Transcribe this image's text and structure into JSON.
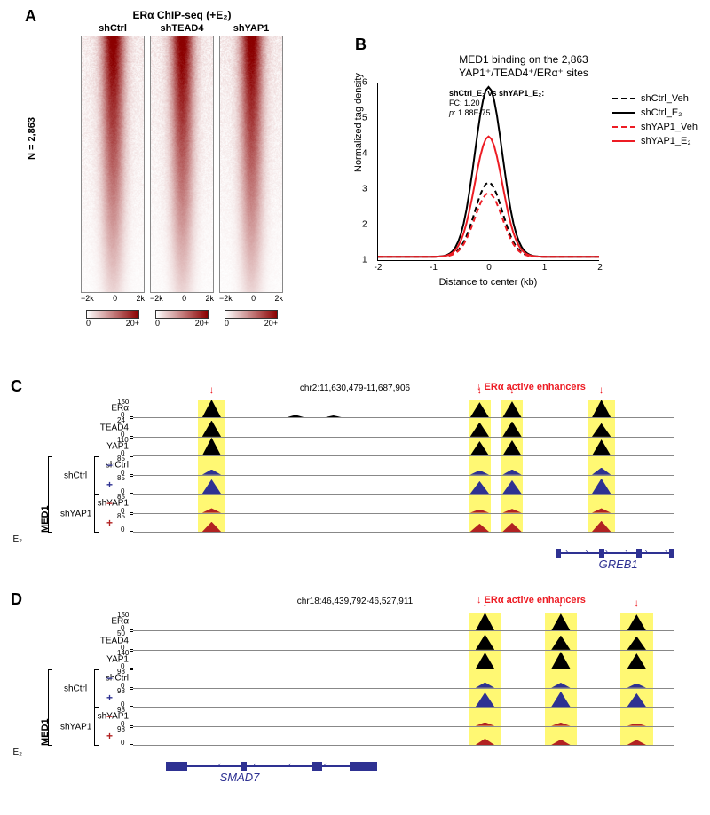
{
  "panelA": {
    "label": "A",
    "title": "ERα ChIP-seq (+E₂)",
    "n_label": "N = 2,863",
    "columns": [
      {
        "label": "shCtrl",
        "scale_min": 0,
        "scale_max": "20+"
      },
      {
        "label": "shTEAD4",
        "scale_min": 0,
        "scale_max": "20+"
      },
      {
        "label": "shYAP1",
        "scale_min": 0,
        "scale_max": "20+"
      }
    ],
    "xaxis": [
      "−2k",
      "0",
      "2k"
    ],
    "heatmap_color_low": "#ffffff",
    "heatmap_color_high": "#8b0000"
  },
  "panelB": {
    "label": "B",
    "title_line1": "MED1 binding on the 2,863",
    "title_line2": "YAP1⁺/TEAD4⁺/ERα⁺ sites",
    "ylabel": "Normalized tag density",
    "xlabel": "Distance to center (kb)",
    "xlim": [
      -2,
      2
    ],
    "ylim": [
      1,
      6
    ],
    "xticks": [
      -2,
      -1,
      0,
      1,
      2
    ],
    "yticks": [
      1,
      2,
      3,
      4,
      5,
      6
    ],
    "inset_line1": "shCtrl_E₂ vs shYAP1_E₂:",
    "inset_line2": "FC: 1.20",
    "inset_line3": "p: 1.88E-75",
    "series": [
      {
        "name": "shCtrl_Veh",
        "color": "#000000",
        "dash": "6,4",
        "peak": 3.2
      },
      {
        "name": "shCtrl_E₂",
        "color": "#000000",
        "dash": "",
        "peak": 5.9
      },
      {
        "name": "shYAP1_Veh",
        "color": "#ed1c24",
        "dash": "6,4",
        "peak": 2.9
      },
      {
        "name": "shYAP1_E₂",
        "color": "#ed1c24",
        "dash": "",
        "peak": 4.5
      }
    ]
  },
  "panelC": {
    "label": "C",
    "coord": "chr2:11,630,479-11,687,906",
    "enh_label": "ERα active enhancers",
    "enh_label_pos_pct": 70,
    "highlights_pct": [
      [
        12,
        17
      ],
      [
        62,
        66
      ],
      [
        68,
        72
      ],
      [
        84,
        89
      ]
    ],
    "arrows_pct": [
      14.5,
      64,
      70,
      86.5
    ],
    "rows": [
      {
        "label": "ERα",
        "scale": 150,
        "color": "#000000",
        "peaks_pct": [
          [
            14.5,
            1.0
          ],
          [
            30,
            0.15
          ],
          [
            37,
            0.12
          ],
          [
            64,
            0.85
          ],
          [
            70,
            0.9
          ],
          [
            86.5,
            1.0
          ]
        ]
      },
      {
        "label": "TEAD4",
        "scale": 24,
        "color": "#000000",
        "peaks_pct": [
          [
            14.5,
            0.9
          ],
          [
            64,
            0.8
          ],
          [
            70,
            0.85
          ],
          [
            86.5,
            0.75
          ]
        ]
      },
      {
        "label": "YAP1",
        "scale": 110,
        "color": "#000000",
        "peaks_pct": [
          [
            14.5,
            1.0
          ],
          [
            64,
            0.8
          ],
          [
            70,
            0.85
          ],
          [
            86.5,
            0.9
          ]
        ]
      },
      {
        "label": "shCtrl",
        "sign": "−",
        "scale": 85,
        "color": "#2e3192",
        "peaks_pct": [
          [
            14.5,
            0.3
          ],
          [
            64,
            0.25
          ],
          [
            70,
            0.3
          ],
          [
            86.5,
            0.4
          ]
        ]
      },
      {
        "label": "",
        "sign": "+",
        "scale": 85,
        "color": "#2e3192",
        "peaks_pct": [
          [
            14.5,
            0.8
          ],
          [
            64,
            0.7
          ],
          [
            70,
            0.75
          ],
          [
            86.5,
            0.85
          ]
        ]
      },
      {
        "label": "shYAP1",
        "sign": "−",
        "scale": 85,
        "color": "#b22222",
        "peaks_pct": [
          [
            14.5,
            0.25
          ],
          [
            64,
            0.2
          ],
          [
            70,
            0.22
          ],
          [
            86.5,
            0.25
          ]
        ]
      },
      {
        "label": "",
        "sign": "+",
        "scale": 85,
        "color": "#b22222",
        "peaks_pct": [
          [
            14.5,
            0.55
          ],
          [
            64,
            0.45
          ],
          [
            70,
            0.5
          ],
          [
            86.5,
            0.6
          ]
        ]
      }
    ],
    "e2_label": "E₂",
    "med1_label": "MED1",
    "gene": {
      "name": "GREB1",
      "start_pct": 78,
      "end_pct": 100,
      "exons_pct": [
        [
          78,
          79
        ],
        [
          86,
          87
        ],
        [
          93,
          94
        ],
        [
          99,
          100
        ]
      ],
      "name_pos_pct": 86
    }
  },
  "panelD": {
    "label": "D",
    "coord": "chr18:46,439,792-46,527,911",
    "enh_label": "ERα active enhancers",
    "enh_label_pos_pct": 70,
    "highlights_pct": [
      [
        62,
        68
      ],
      [
        76,
        82
      ],
      [
        90,
        96
      ]
    ],
    "arrows_pct": [
      65,
      79,
      93
    ],
    "rows": [
      {
        "label": "ERα",
        "scale": 150,
        "color": "#000000",
        "peaks_pct": [
          [
            65,
            1.0
          ],
          [
            79,
            0.95
          ],
          [
            93,
            0.9
          ]
        ]
      },
      {
        "label": "TEAD4",
        "scale": 50,
        "color": "#000000",
        "peaks_pct": [
          [
            65,
            0.85
          ],
          [
            79,
            0.8
          ],
          [
            93,
            0.75
          ]
        ]
      },
      {
        "label": "YAP1",
        "scale": 140,
        "color": "#000000",
        "peaks_pct": [
          [
            65,
            0.9
          ],
          [
            79,
            0.95
          ],
          [
            93,
            0.85
          ]
        ]
      },
      {
        "label": "shCtrl",
        "sign": "−",
        "scale": 98,
        "color": "#2e3192",
        "peaks_pct": [
          [
            65,
            0.3
          ],
          [
            79,
            0.28
          ],
          [
            93,
            0.25
          ]
        ]
      },
      {
        "label": "",
        "sign": "+",
        "scale": 98,
        "color": "#2e3192",
        "peaks_pct": [
          [
            65,
            0.8
          ],
          [
            79,
            0.85
          ],
          [
            93,
            0.75
          ]
        ]
      },
      {
        "label": "shYAP1",
        "sign": "−",
        "scale": 98,
        "color": "#b22222",
        "peaks_pct": [
          [
            65,
            0.2
          ],
          [
            79,
            0.18
          ],
          [
            93,
            0.15
          ]
        ]
      },
      {
        "label": "",
        "sign": "+",
        "scale": 98,
        "color": "#b22222",
        "peaks_pct": [
          [
            65,
            0.35
          ],
          [
            79,
            0.3
          ],
          [
            93,
            0.28
          ]
        ]
      }
    ],
    "e2_label": "E₂",
    "med1_label": "MED1",
    "gene": {
      "name": "SMAD7",
      "start_pct": 6,
      "end_pct": 45,
      "exons_pct": [
        [
          6,
          10
        ],
        [
          20,
          21
        ],
        [
          33,
          35
        ],
        [
          40,
          45
        ]
      ],
      "name_pos_pct": 16
    }
  }
}
